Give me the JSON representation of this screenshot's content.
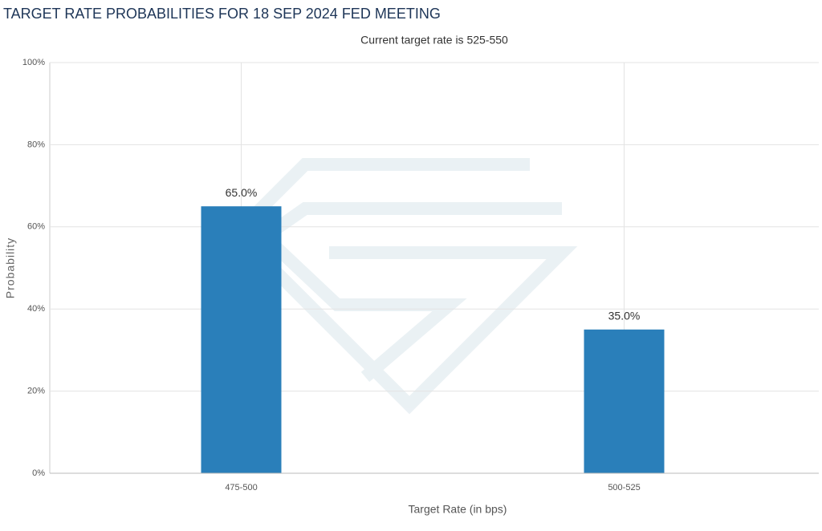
{
  "chart_data": {
    "type": "bar",
    "title": "TARGET RATE PROBABILITIES FOR 18 SEP 2024 FED MEETING",
    "subtitle": "Current target rate is 525-550",
    "x_label": "Target Rate (in bps)",
    "y_label": "Probability",
    "categories": [
      "475-500",
      "500-525"
    ],
    "values": [
      65.0,
      35.0
    ],
    "value_labels": [
      "65.0%",
      "35.0%"
    ],
    "color": "#2a7fba",
    "ylim": [
      0,
      100
    ],
    "yticks": [
      {
        "value": 0,
        "label": "0%"
      },
      {
        "value": 20,
        "label": "20%"
      },
      {
        "value": 40,
        "label": "40%"
      },
      {
        "value": 60,
        "label": "60%"
      },
      {
        "value": 80,
        "label": "80%"
      },
      {
        "value": 100,
        "label": "100%"
      }
    ],
    "grid": true
  }
}
